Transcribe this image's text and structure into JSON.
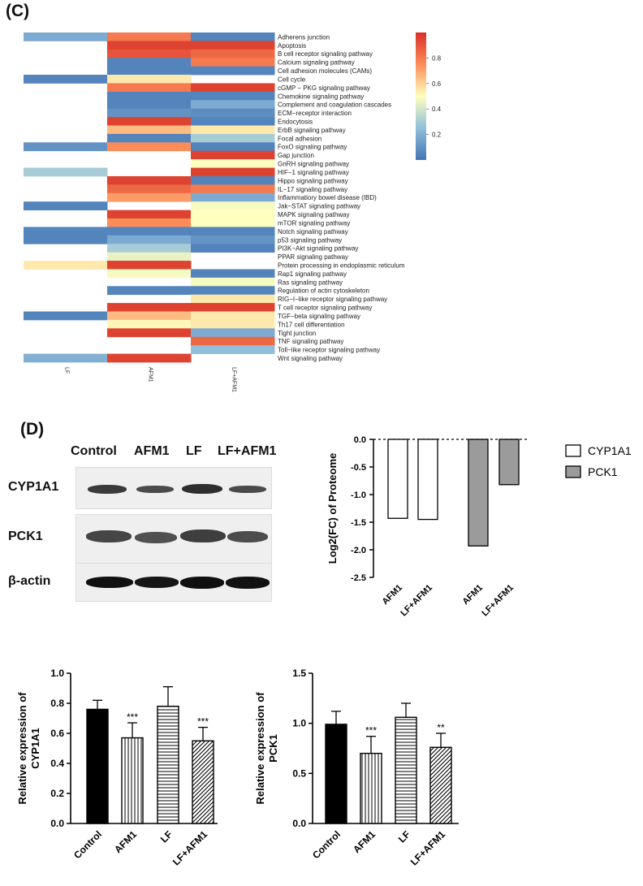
{
  "panels": {
    "c_label": "(C)",
    "d_label": "(D)"
  },
  "heatmap": {
    "columns": [
      "LF",
      "AFM1",
      "LF+AFM1"
    ],
    "rows": [
      "Adherens junction",
      "Apoptosis",
      "B cell receptor signaling pathway",
      "Calcium signaling pathway",
      "Cell adhesion molecules (CAMs)",
      "Cell cycle",
      "cGMP − PKG signaling pathway",
      "Chemokine signaling pathway",
      "Complement and coagulation cascades",
      "ECM−receptor interaction",
      "Endocytosis",
      "ErbB signaling pathway",
      "Focal adhesion",
      "FoxO signaling pathway",
      "Gap junction",
      "GnRH signaling pathway",
      "HIF−1 signaling pathway",
      "Hippo signaling pathway",
      "IL−17 signaling pathway",
      "Inflammatiory bowel disease (IBD)",
      "Jak−STAT signaling pathway",
      "MAPK signaling pathway",
      "mTOR signaling pathway",
      "Notch signaling pathway",
      "p53 signaling pathway",
      "PI3K−Akt signaling pathway",
      "PPAR signaling pathway",
      "Protein processing in endoplasmic reticulum",
      "Rap1 signaling pathway",
      "Ras signaling pathway",
      "Regulation of actin cytoskeleton",
      "RIG−I−like receptor signaling pathway",
      "T cell receptor signaling pathway",
      "TGF−beta signaling pathway",
      "Th17 cell differentiation",
      "Tight junction",
      "TNF signaling pathway",
      "Toll−like receptor signaling pathway",
      "Wnt signaling pathway"
    ],
    "values": [
      [
        0.18,
        0.8,
        0.05
      ],
      [
        null,
        0.95,
        0.95
      ],
      [
        null,
        0.9,
        0.85
      ],
      [
        null,
        0.05,
        0.8
      ],
      [
        null,
        0.05,
        0.05
      ],
      [
        0.05,
        0.55,
        null
      ],
      [
        null,
        0.8,
        0.95
      ],
      [
        null,
        0.05,
        0.05
      ],
      [
        null,
        0.05,
        0.18
      ],
      [
        null,
        0.1,
        0.08
      ],
      [
        null,
        0.95,
        0.05
      ],
      [
        null,
        0.65,
        0.55
      ],
      [
        null,
        0.05,
        0.3
      ],
      [
        0.1,
        0.75,
        0.05
      ],
      [
        null,
        null,
        0.95
      ],
      [
        null,
        null,
        0.5
      ],
      [
        0.3,
        null,
        0.95
      ],
      [
        null,
        0.95,
        0.05
      ],
      [
        null,
        0.85,
        0.8
      ],
      [
        null,
        0.72,
        0.18
      ],
      [
        0.05,
        null,
        0.48
      ],
      [
        null,
        0.95,
        0.5
      ],
      [
        null,
        0.75,
        0.5
      ],
      [
        0.05,
        0.05,
        0.05
      ],
      [
        0.05,
        0.18,
        0.1
      ],
      [
        null,
        0.3,
        0.05
      ],
      [
        null,
        0.45,
        null
      ],
      [
        0.55,
        0.95,
        null
      ],
      [
        null,
        0.48,
        0.05
      ],
      [
        null,
        null,
        0.48
      ],
      [
        null,
        0.05,
        0.05
      ],
      [
        null,
        null,
        0.55
      ],
      [
        null,
        0.95,
        0.95
      ],
      [
        0.05,
        0.65,
        0.55
      ],
      [
        null,
        0.52,
        0.55
      ],
      [
        null,
        0.95,
        0.18
      ],
      [
        null,
        null,
        0.85
      ],
      [
        null,
        null,
        0.25
      ],
      [
        0.2,
        0.95,
        null
      ]
    ],
    "colorbar_ticks": [
      "0.8",
      "0.6",
      "0.4",
      "0.2"
    ],
    "colorbar_range": [
      0,
      1
    ]
  },
  "blot": {
    "lanes": [
      "Control",
      "AFM1",
      "LF",
      "LF+AFM1"
    ],
    "rows": [
      "CYP1A1",
      "PCK1",
      "β-actin"
    ]
  },
  "chart_data": [
    {
      "type": "bar",
      "ylabel": "Log2(FC) of Proteome",
      "categories": [
        "AFM1",
        "LF+AFM1",
        "AFM1",
        "LF+AFM1"
      ],
      "series": [
        {
          "name": "CYP1A1",
          "values": [
            -1.43,
            -1.45,
            null,
            null
          ],
          "color": "#ffffff"
        },
        {
          "name": "PCK1",
          "values": [
            null,
            null,
            -1.93,
            -0.82
          ],
          "color": "#9b9b9b"
        }
      ],
      "ylim": [
        -2.5,
        0
      ],
      "yticks": [
        "0.0",
        "-0.5",
        "-1.0",
        "-1.5",
        "-2.0",
        "-2.5"
      ],
      "legend": "right"
    },
    {
      "type": "bar",
      "ylabel": "Relative expression of CYP1A1",
      "categories": [
        "Control",
        "AFM1",
        "LF",
        "LF+AFM1"
      ],
      "values": [
        0.76,
        0.57,
        0.78,
        0.55
      ],
      "errors": [
        0.06,
        0.1,
        0.13,
        0.09
      ],
      "significance": [
        "",
        "***",
        "",
        "***"
      ],
      "ylim": [
        0,
        1.0
      ],
      "yticks": [
        "0.0",
        "0.2",
        "0.4",
        "0.6",
        "0.8",
        "1.0"
      ]
    },
    {
      "type": "bar",
      "ylabel": "Relative expression of PCK1",
      "categories": [
        "Control",
        "AFM1",
        "LF",
        "LF+AFM1"
      ],
      "values": [
        0.99,
        0.7,
        1.06,
        0.76
      ],
      "errors": [
        0.13,
        0.17,
        0.14,
        0.14
      ],
      "significance": [
        "",
        "***",
        "",
        "**"
      ],
      "ylim": [
        0,
        1.5
      ],
      "yticks": [
        "0.0",
        "0.5",
        "1.0",
        "1.5"
      ]
    }
  ]
}
